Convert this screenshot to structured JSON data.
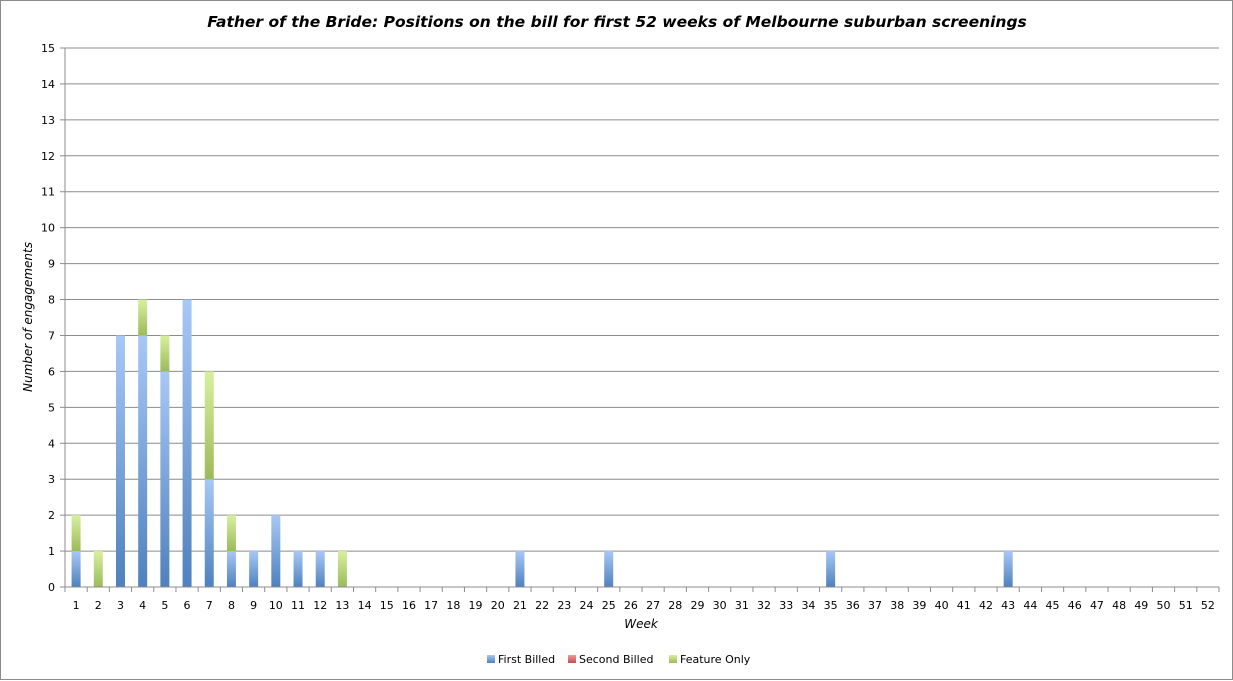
{
  "chart_data": {
    "type": "bar",
    "stacked": true,
    "title": "Father of the Bride: Positions on the bill for first 52 weeks of Melbourne suburban screenings",
    "xlabel": "Week",
    "ylabel": "Number of engagements",
    "ylim": [
      0,
      15
    ],
    "yticks": [
      "0",
      "1",
      "2",
      "3",
      "4",
      "5",
      "6",
      "7",
      "8",
      "9",
      "10",
      "11",
      "12",
      "13",
      "14",
      "15"
    ],
    "grid": true,
    "legend_position": "bottom",
    "categories": [
      "1",
      "2",
      "3",
      "4",
      "5",
      "6",
      "7",
      "8",
      "9",
      "10",
      "11",
      "12",
      "13",
      "14",
      "15",
      "16",
      "17",
      "18",
      "19",
      "20",
      "21",
      "22",
      "23",
      "24",
      "25",
      "26",
      "27",
      "28",
      "29",
      "30",
      "31",
      "32",
      "33",
      "34",
      "35",
      "36",
      "37",
      "38",
      "39",
      "40",
      "41",
      "42",
      "43",
      "44",
      "45",
      "46",
      "47",
      "48",
      "49",
      "50",
      "51",
      "52"
    ],
    "series": [
      {
        "name": "First Billed",
        "color": "#4f81bd",
        "color_light": "#a8c8f5",
        "values": [
          1,
          0,
          7,
          7,
          6,
          8,
          3,
          1,
          1,
          2,
          1,
          1,
          0,
          0,
          0,
          0,
          0,
          0,
          0,
          0,
          1,
          0,
          0,
          0,
          1,
          0,
          0,
          0,
          0,
          0,
          0,
          0,
          0,
          0,
          1,
          0,
          0,
          0,
          0,
          0,
          0,
          0,
          1,
          0,
          0,
          0,
          0,
          0,
          0,
          0,
          0,
          0
        ]
      },
      {
        "name": "Second Billed",
        "color": "#c0504d",
        "color_light": "#f09c9a",
        "values": [
          0,
          0,
          0,
          0,
          0,
          0,
          0,
          0,
          0,
          0,
          0,
          0,
          0,
          0,
          0,
          0,
          0,
          0,
          0,
          0,
          0,
          0,
          0,
          0,
          0,
          0,
          0,
          0,
          0,
          0,
          0,
          0,
          0,
          0,
          0,
          0,
          0,
          0,
          0,
          0,
          0,
          0,
          0,
          0,
          0,
          0,
          0,
          0,
          0,
          0,
          0,
          0
        ]
      },
      {
        "name": "Feature Only",
        "color": "#9bbb59",
        "color_light": "#d7f0a0",
        "values": [
          1,
          1,
          0,
          1,
          1,
          0,
          3,
          1,
          0,
          0,
          0,
          0,
          1,
          0,
          0,
          0,
          0,
          0,
          0,
          0,
          0,
          0,
          0,
          0,
          0,
          0,
          0,
          0,
          0,
          0,
          0,
          0,
          0,
          0,
          0,
          0,
          0,
          0,
          0,
          0,
          0,
          0,
          0,
          0,
          0,
          0,
          0,
          0,
          0,
          0,
          0,
          0
        ]
      }
    ]
  }
}
